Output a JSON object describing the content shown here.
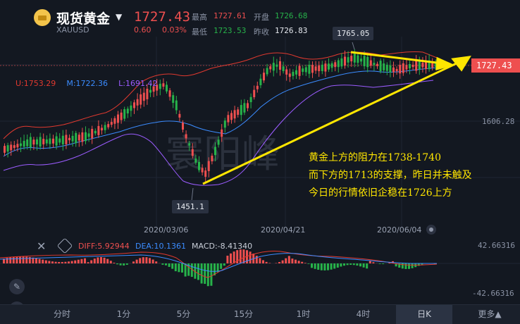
{
  "header": {
    "symbol_name": "现货黄金",
    "symbol_code": "XAUUSD",
    "last_price": "1727.43",
    "change": "0.60",
    "change_pct": "0.03%",
    "stats": {
      "high_label": "最高",
      "high": "1727.61",
      "open_label": "开盘",
      "open": "1726.68",
      "low_label": "最低",
      "low": "1723.53",
      "prev_close_label": "昨收",
      "prev_close": "1726.83"
    }
  },
  "chart": {
    "boll_legend": {
      "upper": "U:1753.29",
      "middle": "M:1722.36",
      "lower": "L:1691.42"
    },
    "current_price_tag": "1727.43",
    "y_axis_label": "1606.28",
    "high_callout": "1765.05",
    "low_callout": "1451.1",
    "dates": [
      "2020/03/06",
      "2020/04/21",
      "2020/06/04"
    ],
    "watermark": "寰阳峰",
    "annotation_lines": [
      "黄金上方的阻力在1738-1740",
      "而下方的1713的支撑，昨日并未触及",
      "今日的行情依旧企稳在1726上方"
    ]
  },
  "macd": {
    "diff": "DIFF:5.92944",
    "dea": "DEA:10.1361",
    "macd": "MACD:-8.41340",
    "axis_top": "42.66316",
    "axis_bottom": "-42.66316"
  },
  "toolbar": {
    "timeframes": [
      "分时",
      "1分",
      "5分",
      "15分",
      "1时",
      "4时",
      "日K"
    ],
    "active": "日K",
    "more": "更多▲"
  },
  "colors": {
    "up": "#ee4f4f",
    "down": "#27b34a",
    "annotation": "#ffe600",
    "boll_upper": "#e0392f",
    "boll_mid": "#3b8cff",
    "boll_lower": "#9b5cff"
  }
}
